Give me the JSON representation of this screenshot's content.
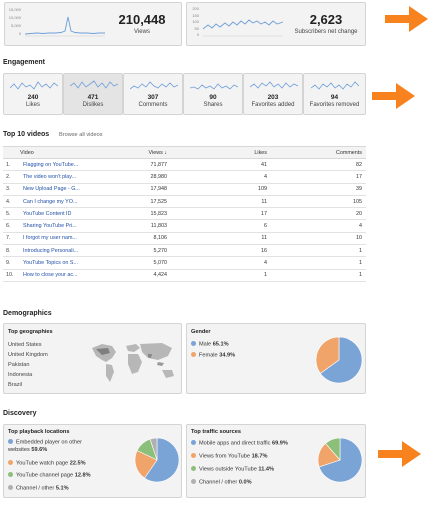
{
  "overview": {
    "views": {
      "value": "210,448",
      "label": "Views",
      "axis": [
        "15,000",
        "10,000",
        "5,000",
        "0"
      ]
    },
    "subscribers": {
      "value": "2,623",
      "label": "Subscribers net change",
      "axis": [
        "200",
        "150",
        "100",
        "50",
        "0"
      ]
    }
  },
  "engagement": {
    "title": "Engagement",
    "cards": [
      {
        "value": "240",
        "label": "Likes"
      },
      {
        "value": "471",
        "label": "Dislikes"
      },
      {
        "value": "307",
        "label": "Comments"
      },
      {
        "value": "90",
        "label": "Shares"
      },
      {
        "value": "203",
        "label": "Favorites added"
      },
      {
        "value": "94",
        "label": "Favorites removed"
      }
    ]
  },
  "top_videos": {
    "title": "Top 10 videos",
    "browse_link": "Browse all videos",
    "columns": {
      "video": "Video",
      "views": "Views ↓",
      "likes": "Likes",
      "comments": "Comments"
    },
    "rows": [
      {
        "n": "1.",
        "title": "Flagging on YouTube...",
        "views": "71,877",
        "likes": "41",
        "comments": "82"
      },
      {
        "n": "2.",
        "title": "The video won't play...",
        "views": "28,980",
        "likes": "4",
        "comments": "17"
      },
      {
        "n": "3.",
        "title": "New Upload Page - G...",
        "views": "17,948",
        "likes": "109",
        "comments": "39"
      },
      {
        "n": "4.",
        "title": "Can I change my YO...",
        "views": "17,525",
        "likes": "11",
        "comments": "105"
      },
      {
        "n": "5.",
        "title": "YouTube Content ID",
        "views": "15,823",
        "likes": "17",
        "comments": "20"
      },
      {
        "n": "6.",
        "title": "Sharing YouTube Pri...",
        "views": "11,803",
        "likes": "6",
        "comments": "4"
      },
      {
        "n": "7.",
        "title": "I forgot my user nam...",
        "views": "8,106",
        "likes": "11",
        "comments": "10"
      },
      {
        "n": "8.",
        "title": "Introducing Personali...",
        "views": "5,270",
        "likes": "16",
        "comments": "1"
      },
      {
        "n": "9.",
        "title": "YouTube Topics on S...",
        "views": "5,070",
        "likes": "4",
        "comments": "1"
      },
      {
        "n": "10.",
        "title": "How to close your ac...",
        "views": "4,424",
        "likes": "1",
        "comments": "1"
      }
    ]
  },
  "demographics": {
    "title": "Demographics",
    "geo_title": "Top geographies",
    "geographies": [
      "United States",
      "United Kingdom",
      "Pakistan",
      "Indonesia",
      "Brazil"
    ],
    "gender_title": "Gender",
    "gender": [
      {
        "label": "Male",
        "pct": "65.1%",
        "value": 65.1,
        "color": "#7aa3d6"
      },
      {
        "label": "Female",
        "pct": "34.9%",
        "value": 34.9,
        "color": "#f0a46a"
      }
    ]
  },
  "discovery": {
    "title": "Discovery",
    "playback_title": "Top playback locations",
    "playback": [
      {
        "label": "Embedded player on other websites",
        "label_line1": "Embedded player on other",
        "label_line2": "websites",
        "pct": "59.6%",
        "value": 59.6,
        "color": "#7aa3d6"
      },
      {
        "label": "YouTube watch page",
        "pct": "22.5%",
        "value": 22.5,
        "color": "#f0a46a"
      },
      {
        "label": "YouTube channel page",
        "pct": "12.8%",
        "value": 12.8,
        "color": "#8cc07a"
      },
      {
        "label": "Channel / other",
        "pct": "5.1%",
        "value": 5.1,
        "color": "#b0b0b0"
      }
    ],
    "traffic_title": "Top traffic sources",
    "traffic": [
      {
        "label": "Mobile apps and direct traffic",
        "pct": "69.9%",
        "value": 69.9,
        "color": "#7aa3d6"
      },
      {
        "label": "Views from YouTube",
        "pct": "18.7%",
        "value": 18.7,
        "color": "#f0a46a"
      },
      {
        "label": "Views outside YouTube",
        "pct": "11.4%",
        "value": 11.4,
        "color": "#8cc07a"
      },
      {
        "label": "Channel / other",
        "pct": "0.0%",
        "value": 0.0,
        "color": "#b0b0b0"
      }
    ]
  },
  "colors": {
    "arrow": "#f7821e",
    "spark": "#6f9fd8",
    "link": "#2250a8"
  }
}
